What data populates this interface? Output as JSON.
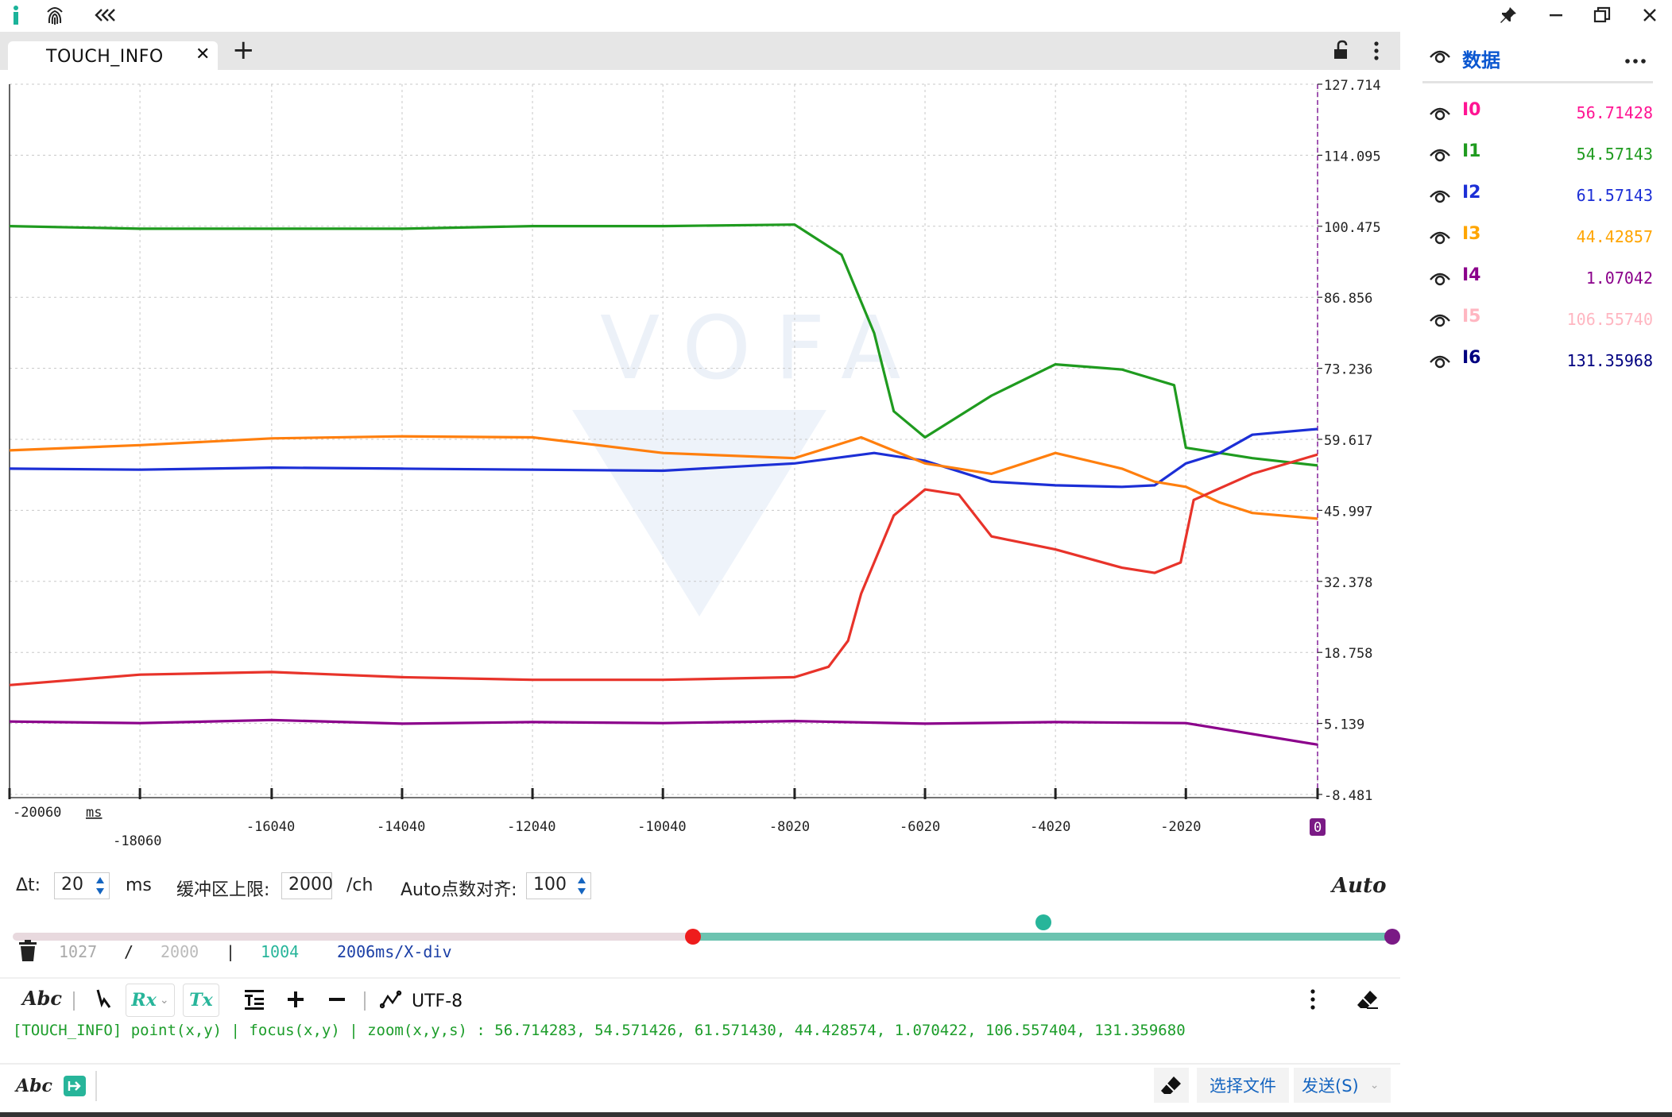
{
  "window": {
    "app_icon": "info-icon",
    "tabs": [
      {
        "label": "TOUCH_INFO",
        "active": true
      }
    ],
    "buttons": [
      "pin-icon",
      "minimize-icon",
      "restore-icon",
      "close-icon"
    ]
  },
  "panel": {
    "title": "数据",
    "menu_icon": "more-horizontal-icon",
    "channels": [
      {
        "name": "I0",
        "value": "56.71428",
        "color": "#ff1493"
      },
      {
        "name": "I1",
        "value": "54.57143",
        "color": "#1f9b1f"
      },
      {
        "name": "I2",
        "value": "61.57143",
        "color": "#1c2fd6"
      },
      {
        "name": "I3",
        "value": "44.42857",
        "color": "#ffa500"
      },
      {
        "name": "I4",
        "value": "1.07042",
        "color": "#8b008b"
      },
      {
        "name": "I5",
        "value": "106.55740",
        "color": "#ffb6c1"
      },
      {
        "name": "I6",
        "value": "131.35968",
        "color": "#000080"
      }
    ]
  },
  "chart_data": {
    "type": "line",
    "title": "",
    "xlabel": "ms",
    "ylabel": "",
    "xlim": [
      -20060,
      0
    ],
    "ylim": [
      -8.481,
      127.714
    ],
    "x_ticks": [
      "-20060",
      "-18060",
      "-16040",
      "-14040",
      "-12040",
      "-10040",
      "-8020",
      "-6020",
      "-4020",
      "-2020",
      "0"
    ],
    "y_ticks": [
      "127.714",
      "114.095",
      "100.475",
      "86.856",
      "73.236",
      "59.617",
      "45.997",
      "32.378",
      "18.758",
      "5.139",
      "-8.481"
    ],
    "grid": true,
    "legend": "right-panel",
    "watermark": "VOFA",
    "series": [
      {
        "name": "I1",
        "color": "#1f9b1f",
        "x": [
          -20060,
          -18060,
          -16040,
          -14040,
          -12040,
          -10040,
          -8020,
          -7300,
          -6800,
          -6500,
          -6020,
          -5000,
          -4020,
          -3000,
          -2200,
          -2020,
          -1500,
          -1000,
          0
        ],
        "y": [
          100.5,
          100.0,
          100.0,
          100.0,
          100.5,
          100.5,
          100.8,
          95,
          80,
          65,
          60,
          68,
          74,
          73,
          70,
          58,
          57,
          56,
          54.6
        ]
      },
      {
        "name": "I2",
        "color": "#1c2fd6",
        "x": [
          -20060,
          -18060,
          -16040,
          -14040,
          -12040,
          -10040,
          -8020,
          -6800,
          -6020,
          -5000,
          -4020,
          -3000,
          -2500,
          -2020,
          -1500,
          -1000,
          0
        ],
        "y": [
          54,
          53.8,
          54.2,
          54,
          53.8,
          53.6,
          55,
          57,
          55.5,
          51.5,
          50.8,
          50.5,
          50.8,
          55,
          57,
          60.5,
          61.6
        ]
      },
      {
        "name": "I3",
        "color": "#ff7f0e",
        "x": [
          -20060,
          -18060,
          -16040,
          -14040,
          -12040,
          -10040,
          -8020,
          -7000,
          -6020,
          -5000,
          -4020,
          -3000,
          -2500,
          -2020,
          -1500,
          -1000,
          0
        ],
        "y": [
          57.5,
          58.5,
          59.8,
          60.2,
          60,
          57,
          56,
          60,
          55,
          53,
          57,
          54,
          51.5,
          50.5,
          47.5,
          45.5,
          44.4
        ]
      },
      {
        "name": "I0",
        "color": "#e8332a",
        "x": [
          -20060,
          -18060,
          -16040,
          -14040,
          -12040,
          -10040,
          -8020,
          -7500,
          -7200,
          -7000,
          -6500,
          -6020,
          -5500,
          -5000,
          -4020,
          -3000,
          -2500,
          -2100,
          -1900,
          -1000,
          0
        ],
        "y": [
          12.5,
          14.5,
          15,
          14,
          13.5,
          13.5,
          14,
          16,
          21,
          30,
          45,
          50,
          49,
          41,
          38.5,
          35,
          34,
          36,
          48,
          53,
          56.7
        ]
      },
      {
        "name": "I4",
        "color": "#8b008b",
        "x": [
          -20060,
          -18060,
          -16040,
          -14040,
          -12040,
          -10040,
          -8020,
          -6020,
          -4020,
          -2020,
          0
        ],
        "y": [
          5.5,
          5.2,
          5.8,
          5.1,
          5.4,
          5.2,
          5.6,
          5.1,
          5.4,
          5.2,
          1.07
        ]
      }
    ]
  },
  "controls": {
    "dt_label": "Δt:",
    "dt_value": "20",
    "dt_unit": "ms",
    "buffer_label": "缓冲区上限:",
    "buffer_value": "2000",
    "buffer_unit": "/ch",
    "auto_align_label": "Auto点数对齐:",
    "auto_align_value": "100",
    "mode": "Auto",
    "slider_start_fraction": 0.493,
    "slider_mid_fraction": 0.747,
    "stat_count": "1027",
    "stat_sep1": "/",
    "stat_total": "2000",
    "stat_sep2": "|",
    "stat_visible": "1004",
    "stat_scale": "2006ms/X-div"
  },
  "toolbar": {
    "abc": "Abc",
    "rx": "Rx",
    "tx": "Tx",
    "encoding": "UTF-8"
  },
  "log_line": "[TOUCH_INFO] point(x,y) | focus(x,y) | zoom(x,y,s) : 56.714283, 54.571426, 61.571430, 44.428574, 1.070422, 106.557404, 131.359680",
  "send": {
    "abc": "Abc",
    "input_value": "",
    "file_button": "选择文件",
    "send_button": "发送(S)"
  }
}
